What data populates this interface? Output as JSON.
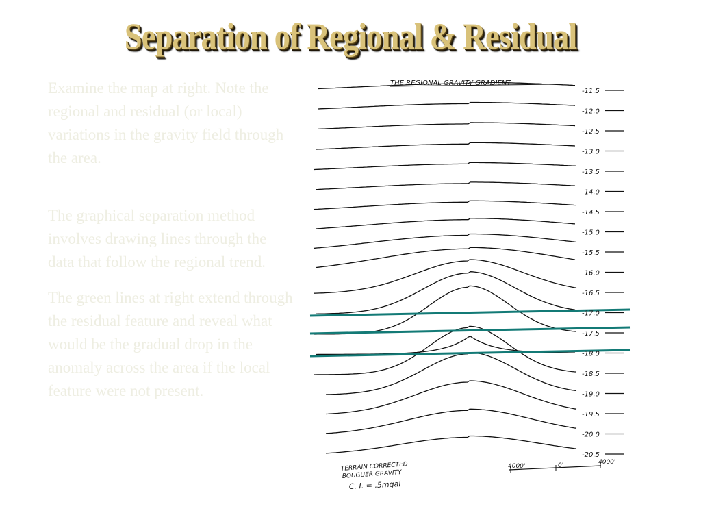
{
  "slide": {
    "title": "Separation of Regional & Residual",
    "paragraphs": [
      "Examine the map at right. Note the regional and residual (or local) variations in the gravity field through the area.",
      "The graphical separation method involves drawing lines through the data that follow the regional trend.",
      "The green lines at right extend through the residual feature and reveal what would be the gradual drop in the anomaly across the area if the local feature were not present."
    ]
  },
  "map": {
    "heading": "THE REGIONAL GRAVITY GRADIENT",
    "contour_labels": [
      "-11.5",
      "-12.0",
      "-12.5",
      "-13.0",
      "-13.5",
      "-14.0",
      "-14.5",
      "-15.0",
      "-15.5",
      "-16.0",
      "-16.5",
      "-17.0",
      "-17.5",
      "-18.0",
      "-18.5",
      "-19.0",
      "-19.5",
      "-20.0",
      "-20.5"
    ],
    "legend_line1": "TERRAIN CORRECTED",
    "legend_line2": "BOUGUER GRAVITY",
    "legend_line3": "C. I. = .5mgal",
    "scale_left": "4000'",
    "scale_mid": "0'",
    "scale_right": "4000'",
    "colors": {
      "contour": "#111111",
      "regional_line": "#137a76"
    }
  }
}
